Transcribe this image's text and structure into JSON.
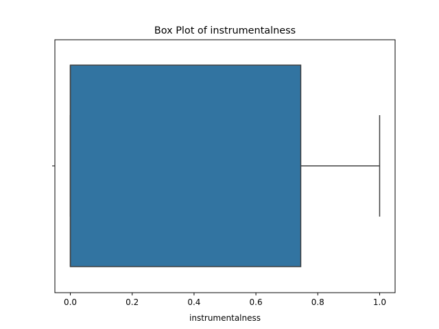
{
  "chart_data": {
    "type": "box",
    "title": "Box Plot of instrumentalness",
    "xlabel": "instrumentalness",
    "ylabel": "",
    "xlim": [
      -0.05,
      1.05
    ],
    "xticks": [
      0.0,
      0.2,
      0.4,
      0.6,
      0.8,
      1.0
    ],
    "xtick_labels": [
      "0.0",
      "0.2",
      "0.4",
      "0.6",
      "0.8",
      "1.0"
    ],
    "orientation": "horizontal",
    "box": {
      "q1": 0.0,
      "median": 0.0,
      "q3": 0.745,
      "whisker_low": 0.0,
      "whisker_high": 1.0
    },
    "grid": false,
    "box_color": "#3274a1",
    "line_color": "#3f3f3f"
  }
}
